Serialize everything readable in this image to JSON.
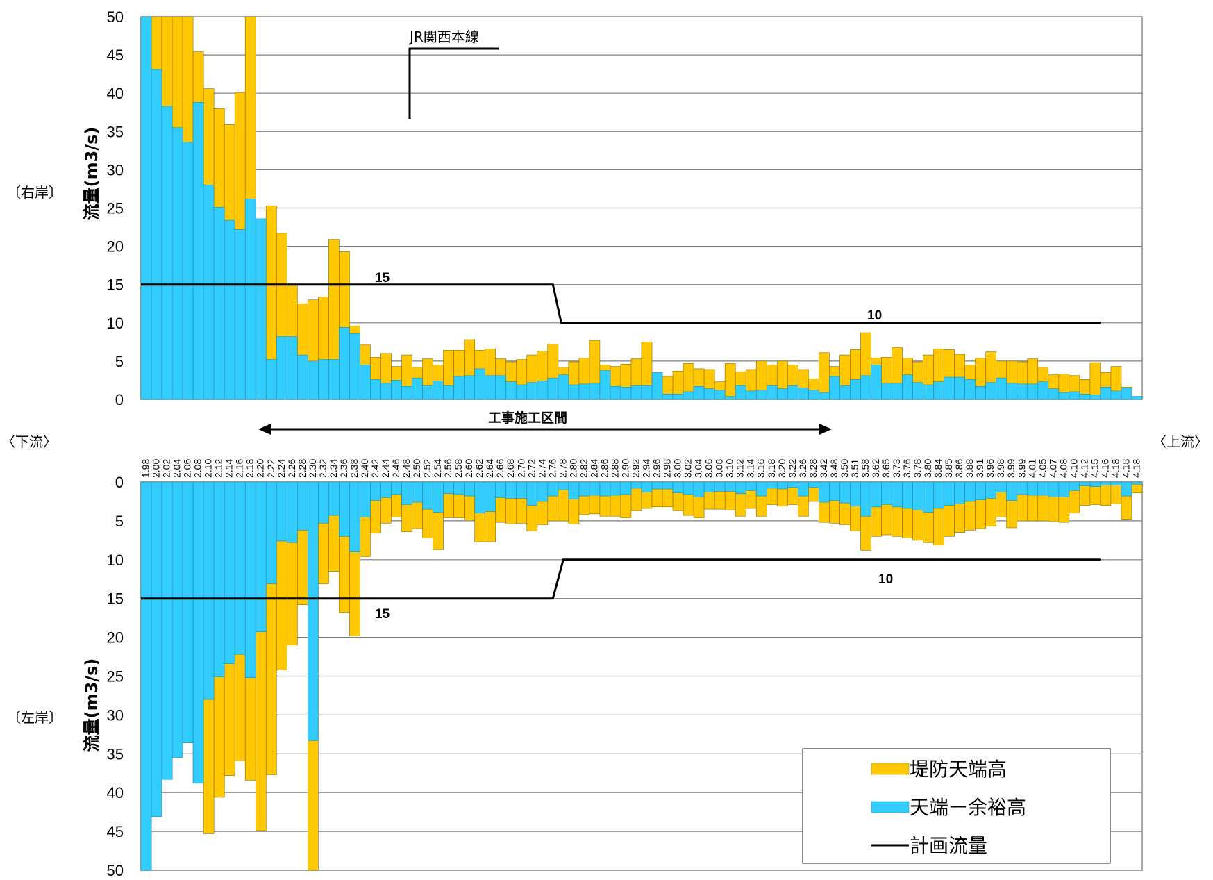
{
  "chart_data": [
    {
      "panel": "right-bank",
      "type": "bar",
      "side_label": "〔右岸〕",
      "ylabel": "流量(m3/s)",
      "ylim": [
        0,
        50
      ],
      "yticks": [
        0,
        5,
        10,
        15,
        20,
        25,
        30,
        35,
        40,
        45,
        50
      ],
      "grid": true,
      "series": [
        {
          "name": "堤防天端高",
          "color": "#FFC800",
          "values": [
            50,
            50,
            50,
            50,
            50,
            45.4,
            40.6,
            38,
            35.9,
            40.1,
            50,
            23.1,
            25.3,
            21.7,
            15,
            12.5,
            13,
            13.4,
            20.9,
            19.3,
            9.6,
            7.1,
            5.5,
            6,
            4.3,
            5.8,
            4.2,
            5.3,
            4.5,
            6.4,
            6.4,
            7.8,
            6.4,
            6.6,
            5.3,
            4.9,
            5.2,
            5.8,
            6.3,
            7.2,
            4.2,
            4.9,
            5.4,
            7.7,
            4.5,
            4.3,
            4.6,
            5.3,
            7.5,
            3.1,
            3,
            3.7,
            4.7,
            4,
            3.9,
            2.3,
            4.7,
            3.6,
            3.9,
            5,
            4.5,
            5,
            4.5,
            3.9,
            2.7,
            6.1,
            4.3,
            5.8,
            6.5,
            8.7,
            5.4,
            5.5,
            6.8,
            5.4,
            4.9,
            5.8,
            6.6,
            6.5,
            5.9,
            4.5,
            5.4,
            6.2,
            5,
            5,
            4.9,
            5.3,
            4.2,
            3.2,
            3.3,
            3.1,
            2.6,
            4.8,
            3.5,
            4.3,
            1.6
          ]
        },
        {
          "name": "天端ー余裕高",
          "color": "#33CCFF",
          "values": [
            50,
            43.1,
            38.3,
            35.5,
            33.6,
            38.8,
            28,
            25.1,
            23.4,
            22.2,
            26.2,
            23.6,
            5.2,
            8.2,
            8.2,
            5.8,
            5,
            5.2,
            5.2,
            9.4,
            8.6,
            4.5,
            2.6,
            2.1,
            2.5,
            1.7,
            2.8,
            1.8,
            2.4,
            1.8,
            3,
            3.1,
            4,
            3.1,
            3.1,
            2.3,
            1.9,
            2.2,
            2.4,
            2.8,
            3.2,
            1.9,
            2,
            2.1,
            3.8,
            1.7,
            1.6,
            1.8,
            1.8,
            3.5,
            0.7,
            0.7,
            1,
            1.7,
            1.4,
            1.2,
            0.4,
            1.8,
            1.1,
            1.2,
            1.8,
            1.4,
            1.8,
            1.5,
            1.2,
            0.9,
            3,
            1.8,
            2.6,
            3.1,
            4.5,
            2.1,
            2.1,
            3.2,
            2.2,
            1.9,
            2.3,
            2.9,
            2.9,
            2.6,
            1.7,
            2.2,
            2.8,
            2.1,
            2,
            2,
            2.3,
            1.4,
            0.9,
            1,
            0.7,
            0.6,
            1.6,
            1.1,
            1.5,
            0.4
          ]
        }
      ],
      "plan_flow": {
        "name": "計画流量",
        "color": "#000000",
        "points": [
          [
            0,
            15
          ],
          [
            39.5,
            15
          ],
          [
            40.3,
            10
          ],
          [
            92,
            10
          ]
        ]
      },
      "annotations": [
        "15",
        "10"
      ],
      "railway_label": "JR関西本線"
    },
    {
      "panel": "left-bank",
      "type": "bar",
      "side_label": "〔左岸〕",
      "ylabel": "流量(m3/s)",
      "ylim": [
        50,
        0
      ],
      "yticks": [
        0,
        5,
        10,
        15,
        20,
        25,
        30,
        35,
        40,
        45,
        50
      ],
      "grid": true,
      "series": [
        {
          "name": "堤防天端高",
          "color": "#FFC800",
          "values": [
            50,
            43.1,
            38.3,
            35.5,
            33.6,
            38.8,
            45.3,
            40.6,
            37.8,
            35.9,
            38.4,
            44.9,
            37.7,
            24.2,
            21,
            15.8,
            50,
            13.1,
            11.5,
            16.8,
            19.8,
            9.6,
            6.6,
            5.3,
            4.5,
            6.4,
            6,
            7.2,
            8.7,
            4.6,
            4.6,
            4.9,
            7.7,
            7.7,
            5.2,
            5.4,
            5.3,
            6.3,
            5.5,
            5,
            5,
            5.4,
            4.2,
            4.1,
            4.4,
            4.4,
            4.6,
            3.7,
            3.4,
            3.2,
            3.2,
            3.7,
            4.3,
            4.6,
            3.5,
            3.5,
            3.6,
            4.4,
            3.4,
            4.4,
            2.9,
            3.1,
            2.9,
            4.4,
            2.5,
            5.2,
            5.3,
            5.5,
            6.3,
            8.8,
            7,
            6.8,
            7,
            7.2,
            7.5,
            7.8,
            8.1,
            7,
            6.5,
            6.2,
            6,
            5.7,
            4.5,
            5.9,
            5,
            5,
            5,
            5.1,
            5.2,
            4,
            3,
            2.9,
            3,
            2.8,
            4.8,
            1.4
          ]
        },
        {
          "name": "天端ー余裕高",
          "color": "#33CCFF",
          "values": [
            50,
            43.1,
            38.3,
            35.5,
            33.6,
            38.8,
            28,
            25.1,
            23.4,
            22.2,
            25.2,
            19.3,
            13.1,
            7.6,
            7.8,
            6.2,
            33.3,
            5.3,
            4.3,
            7,
            9,
            4.5,
            2.4,
            2,
            1.6,
            2.9,
            2.6,
            3.5,
            3.9,
            1.5,
            1.6,
            1.8,
            4,
            3.8,
            2,
            2.1,
            2.1,
            3,
            2.5,
            1.8,
            1,
            2.2,
            1.8,
            1.7,
            1.8,
            1.7,
            1.6,
            0.8,
            1.3,
            0.9,
            0.9,
            1.4,
            1.6,
            1.9,
            1.3,
            1.2,
            1.2,
            1.5,
            1.1,
            1.8,
            0.8,
            0.9,
            0.7,
            1.8,
            0.7,
            2.6,
            2.4,
            2.7,
            3.1,
            4.4,
            3.2,
            2.9,
            3.2,
            3.4,
            3.6,
            3.9,
            3.4,
            3,
            2.8,
            2.5,
            2.3,
            2.1,
            1.3,
            2.4,
            1.6,
            1.7,
            1.7,
            1.9,
            1.9,
            1.1,
            0.5,
            0.6,
            0.4,
            0.4,
            1.8,
            0.3
          ]
        }
      ],
      "plan_flow": {
        "name": "計画流量",
        "color": "#000000",
        "points": [
          [
            0,
            15
          ],
          [
            39.5,
            15
          ],
          [
            40.5,
            10
          ],
          [
            92,
            10
          ]
        ]
      },
      "annotations": [
        "15",
        "10"
      ]
    }
  ],
  "x_axis": {
    "left_label": "〈下流〉",
    "right_label": "〈上流〉",
    "construction_label": "工事施工区間",
    "categories": [
      "1.98",
      "2.00",
      "2.02",
      "2.04",
      "2.06",
      "2.08",
      "2.10",
      "2.12",
      "2.14",
      "2.16",
      "2.18",
      "2.20",
      "2.22",
      "2.24",
      "2.26",
      "2.28",
      "2.30",
      "2.32",
      "2.34",
      "2.36",
      "2.38",
      "2.40",
      "2.42",
      "2.44",
      "2.46",
      "2.48",
      "2.50",
      "2.52",
      "2.54",
      "2.56",
      "2.58",
      "2.60",
      "2.62",
      "2.64",
      "2.66",
      "2.68",
      "2.70",
      "2.72",
      "2.74",
      "2.76",
      "2.78",
      "2.80",
      "2.82",
      "2.84",
      "2.86",
      "2.88",
      "2.90",
      "2.92",
      "2.94",
      "2.96",
      "2.98",
      "3.00",
      "3.02",
      "3.04",
      "3.06",
      "3.08",
      "3.10",
      "3.12",
      "3.14",
      "3.16",
      "3.18",
      "3.20",
      "3.22",
      "3.26",
      "3.28",
      "3.42",
      "3.48",
      "3.50",
      "3.51",
      "3.58",
      "3.62",
      "3.65",
      "3.73",
      "3.76",
      "3.78",
      "3.80",
      "3.84",
      "3.85",
      "3.86",
      "3.88",
      "3.91",
      "3.96",
      "3.98",
      "3.99",
      "3.99",
      "4.01",
      "4.05",
      "4.07",
      "4.08",
      "4.10",
      "4.12",
      "4.15",
      "4.16",
      "4.18",
      "4.18",
      "4.18"
    ]
  },
  "legend": {
    "items": [
      {
        "label": "堤防天端高",
        "color": "#FFC800",
        "kind": "box"
      },
      {
        "label": "天端ー余裕高",
        "color": "#33CCFF",
        "kind": "box"
      },
      {
        "label": "計画流量",
        "color": "#000000",
        "kind": "line"
      }
    ]
  }
}
